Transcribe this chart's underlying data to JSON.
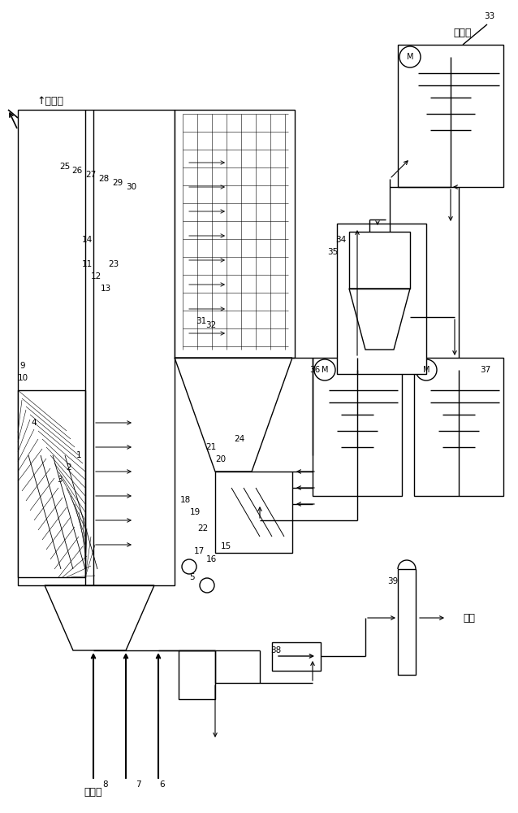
{
  "bg_color": "#ffffff",
  "lc": "#000000",
  "lw": 1.0,
  "fs": 7.5,
  "fig_w": 6.38,
  "fig_h": 10.0,
  "labels": {
    "yuan_yanqi": "原烟气",
    "jing_yanqi": "净烟气",
    "dianshizha": "电石渣",
    "shigao": "石膏"
  }
}
